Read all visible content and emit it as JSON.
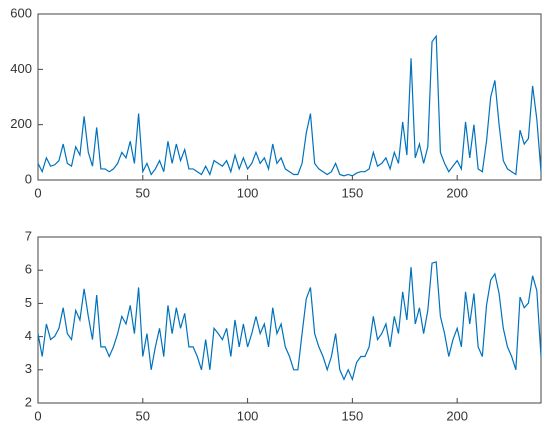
{
  "chart_data": [
    {
      "type": "line",
      "color": "#0072BD",
      "x": [
        0,
        2,
        4,
        6,
        8,
        10,
        12,
        14,
        16,
        18,
        20,
        22,
        24,
        26,
        28,
        30,
        32,
        34,
        36,
        38,
        40,
        42,
        44,
        46,
        48,
        50,
        52,
        54,
        56,
        58,
        60,
        62,
        64,
        66,
        68,
        70,
        72,
        74,
        76,
        78,
        80,
        82,
        84,
        86,
        88,
        90,
        92,
        94,
        96,
        98,
        100,
        102,
        104,
        106,
        108,
        110,
        112,
        114,
        116,
        118,
        120,
        122,
        124,
        126,
        128,
        130,
        132,
        134,
        136,
        138,
        140,
        142,
        144,
        146,
        148,
        150,
        152,
        154,
        156,
        158,
        160,
        162,
        164,
        166,
        168,
        170,
        172,
        174,
        176,
        178,
        180,
        182,
        184,
        186,
        188,
        190,
        192,
        194,
        196,
        198,
        200,
        202,
        204,
        206,
        208,
        210,
        212,
        214,
        216,
        218,
        220,
        222,
        224,
        226,
        228,
        230,
        232,
        234,
        236,
        238,
        240
      ],
      "values": [
        60,
        30,
        80,
        50,
        55,
        70,
        130,
        60,
        50,
        120,
        90,
        230,
        100,
        50,
        190,
        40,
        40,
        30,
        40,
        60,
        100,
        80,
        140,
        60,
        240,
        30,
        60,
        20,
        40,
        70,
        30,
        140,
        60,
        130,
        70,
        110,
        40,
        40,
        30,
        20,
        50,
        20,
        70,
        60,
        50,
        70,
        30,
        90,
        40,
        80,
        40,
        60,
        100,
        60,
        80,
        40,
        130,
        60,
        80,
        40,
        30,
        20,
        20,
        60,
        170,
        240,
        60,
        40,
        30,
        20,
        30,
        60,
        20,
        15,
        20,
        15,
        25,
        30,
        30,
        40,
        100,
        50,
        60,
        80,
        40,
        100,
        60,
        210,
        90,
        440,
        80,
        130,
        60,
        120,
        500,
        520,
        100,
        60,
        30,
        50,
        70,
        40,
        210,
        80,
        200,
        40,
        30,
        140,
        300,
        360,
        200,
        70,
        40,
        30,
        20,
        180,
        130,
        150,
        340,
        220,
        30
      ],
      "xlim": [
        0,
        240
      ],
      "ylim": [
        0,
        600
      ],
      "xticks": [
        0,
        50,
        100,
        150,
        200
      ],
      "yticks": [
        0,
        200,
        400,
        600
      ]
    },
    {
      "type": "line",
      "color": "#0072BD",
      "x": [
        0,
        2,
        4,
        6,
        8,
        10,
        12,
        14,
        16,
        18,
        20,
        22,
        24,
        26,
        28,
        30,
        32,
        34,
        36,
        38,
        40,
        42,
        44,
        46,
        48,
        50,
        52,
        54,
        56,
        58,
        60,
        62,
        64,
        66,
        68,
        70,
        72,
        74,
        76,
        78,
        80,
        82,
        84,
        86,
        88,
        90,
        92,
        94,
        96,
        98,
        100,
        102,
        104,
        106,
        108,
        110,
        112,
        114,
        116,
        118,
        120,
        122,
        124,
        126,
        128,
        130,
        132,
        134,
        136,
        138,
        140,
        142,
        144,
        146,
        148,
        150,
        152,
        154,
        156,
        158,
        160,
        162,
        164,
        166,
        168,
        170,
        172,
        174,
        176,
        178,
        180,
        182,
        184,
        186,
        188,
        190,
        192,
        194,
        196,
        198,
        200,
        202,
        204,
        206,
        208,
        210,
        212,
        214,
        216,
        218,
        220,
        222,
        224,
        226,
        228,
        230,
        232,
        234,
        236,
        238,
        240
      ],
      "values": [
        4.09,
        3.4,
        4.38,
        3.91,
        4.01,
        4.25,
        4.87,
        4.09,
        3.91,
        4.79,
        4.5,
        5.44,
        4.61,
        3.91,
        5.25,
        3.69,
        3.69,
        3.4,
        3.69,
        4.09,
        4.61,
        4.38,
        4.94,
        4.09,
        5.48,
        3.4,
        4.09,
        3.0,
        3.69,
        4.25,
        3.4,
        4.94,
        4.09,
        4.87,
        4.25,
        4.7,
        3.69,
        3.69,
        3.4,
        3.0,
        3.91,
        3.0,
        4.25,
        4.09,
        3.91,
        4.25,
        3.4,
        4.5,
        3.69,
        4.38,
        3.69,
        4.09,
        4.61,
        4.09,
        4.38,
        3.69,
        4.87,
        4.09,
        4.38,
        3.69,
        3.4,
        3.0,
        3.0,
        4.09,
        5.14,
        5.48,
        4.09,
        3.69,
        3.4,
        3.0,
        3.4,
        4.09,
        3.0,
        2.71,
        3.0,
        2.71,
        3.22,
        3.4,
        3.4,
        3.69,
        4.61,
        3.91,
        4.09,
        4.38,
        3.69,
        4.61,
        4.09,
        5.35,
        4.5,
        6.09,
        4.38,
        4.87,
        4.09,
        4.79,
        6.21,
        6.25,
        4.61,
        4.09,
        3.4,
        3.91,
        4.25,
        3.69,
        5.35,
        4.38,
        5.3,
        3.69,
        3.4,
        4.94,
        5.7,
        5.89,
        5.3,
        4.25,
        3.69,
        3.4,
        3.0,
        5.19,
        4.87,
        5.01,
        5.83,
        5.39,
        3.4
      ],
      "xlim": [
        0,
        240
      ],
      "ylim": [
        2,
        7
      ],
      "xticks": [
        0,
        50,
        100,
        150,
        200
      ],
      "yticks": [
        2,
        3,
        4,
        5,
        6,
        7
      ]
    }
  ]
}
